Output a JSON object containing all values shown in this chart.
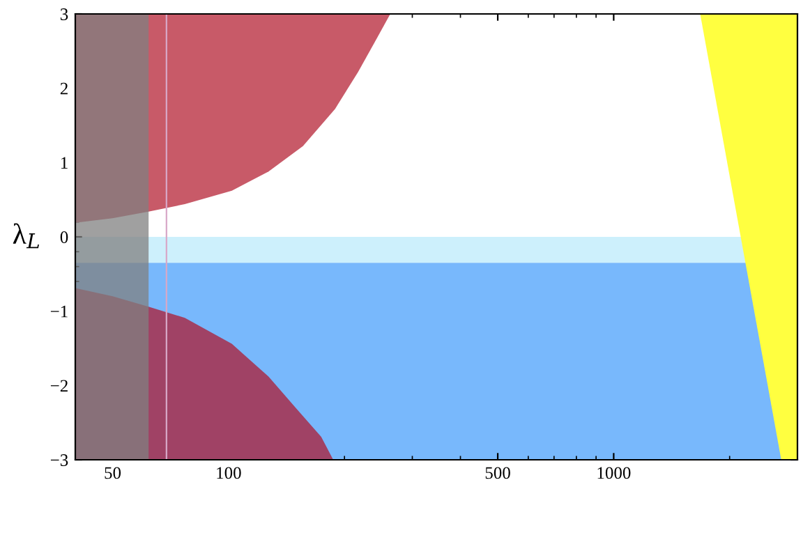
{
  "chart_data": {
    "type": "area",
    "ylabel": "λ$_{L}$",
    "log": "x",
    "xlim": [
      40,
      3000
    ],
    "xticks": [
      50,
      100,
      500,
      1000
    ],
    "ylim": [
      -3,
      3
    ],
    "yticks": [
      -3,
      -2,
      -1,
      0,
      1,
      2,
      3
    ],
    "series": [
      {
        "color": "#c85a68",
        "x": [
          40,
          40,
          50,
          62,
          77,
          102,
          127,
          156,
          189,
          217,
          242,
          263
        ],
        "values": [
          3,
          0.19,
          0.25,
          0.34,
          0.44,
          0.62,
          0.88,
          1.22,
          1.72,
          2.22,
          2.66,
          3
        ]
      },
      {
        "color": "#a04265",
        "x": [
          40,
          40,
          50,
          62,
          77,
          102,
          127,
          150,
          174,
          187
        ],
        "values": [
          -3,
          -0.69,
          -0.8,
          -0.94,
          -1.09,
          -1.44,
          -1.88,
          -2.31,
          -2.69,
          -3
        ]
      },
      {
        "color": "#ffff40",
        "x": [
          1677,
          2723,
          3000,
          3000
        ],
        "values": [
          3,
          -3,
          -3,
          3
        ]
      }
    ],
    "bands": [
      {
        "axis": "y",
        "from": -0.35,
        "to": 0,
        "color": "#cdf0fc"
      },
      {
        "axis": "y",
        "from": -3,
        "to": -0.35,
        "color": "#78b8fc"
      },
      {
        "axis": "x",
        "from": 40,
        "to": 62,
        "color": "#808080"
      }
    ],
    "ref_lines": [
      {
        "axis": "x",
        "value": 69,
        "color": "#d8a8c8"
      }
    ],
    "grid": false,
    "legend": false
  }
}
